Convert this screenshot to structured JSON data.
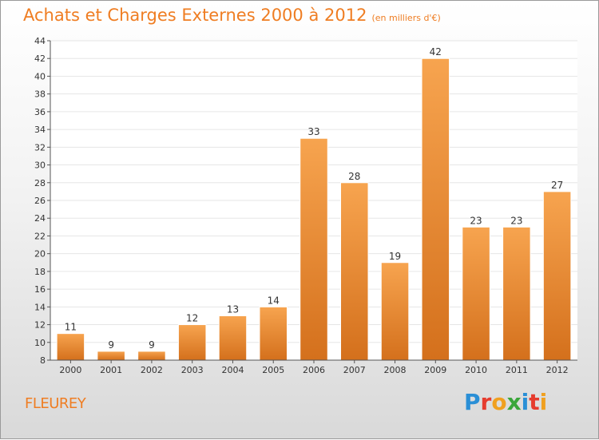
{
  "title": "Achats et Charges Externes 2000 à 2012",
  "subtitle": "(en milliers d'€)",
  "city": "FLEUREY",
  "logo": {
    "text": "Proxiti",
    "letters": [
      {
        "char": "P",
        "color": "#2a8fd6"
      },
      {
        "char": "r",
        "color": "#e63c2e"
      },
      {
        "char": "o",
        "color": "#f0a020"
      },
      {
        "char": "x",
        "color": "#3aa63a"
      },
      {
        "char": "i",
        "color": "#2a8fd6"
      },
      {
        "char": "t",
        "color": "#e63c2e"
      },
      {
        "char": "i",
        "color": "#f0a020"
      }
    ]
  },
  "colors": {
    "accent": "#ef7d22",
    "bar_top": "#f7a44f",
    "bar_bottom": "#d4701c",
    "grid": "#e6e6e6"
  },
  "chart_data": {
    "type": "bar",
    "categories": [
      "2000",
      "2001",
      "2002",
      "2003",
      "2004",
      "2005",
      "2006",
      "2007",
      "2008",
      "2009",
      "2010",
      "2011",
      "2012"
    ],
    "values": [
      11,
      9,
      9,
      12,
      13,
      14,
      33,
      28,
      19,
      42,
      23,
      23,
      27
    ],
    "ylim": [
      8,
      44
    ],
    "yticks": [
      8,
      10,
      12,
      14,
      16,
      18,
      20,
      22,
      24,
      26,
      28,
      30,
      32,
      34,
      36,
      38,
      40,
      42,
      44
    ],
    "grid": true
  }
}
